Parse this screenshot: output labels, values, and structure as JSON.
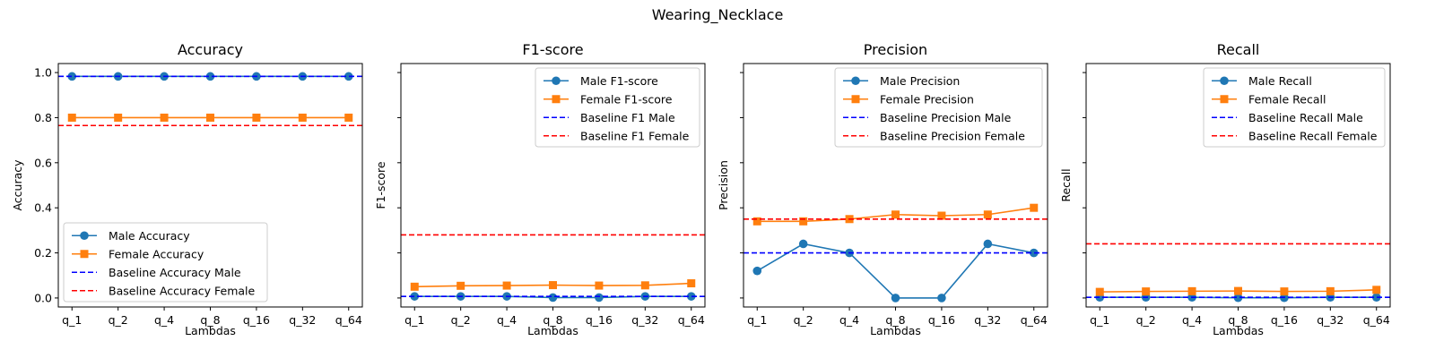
{
  "figure": {
    "suptitle": "Wearing_Necklace"
  },
  "colors": {
    "male": "#1f77b4",
    "female": "#ff7f0e",
    "baseline_male": "#0000ff",
    "baseline_female": "#ff0000"
  },
  "chart_data": [
    {
      "type": "line",
      "title": "Accuracy",
      "xlabel": "Lambdas",
      "ylabel": "Accuracy",
      "categories": [
        "q_1",
        "q_2",
        "q_4",
        "q_8",
        "q_16",
        "q_32",
        "q_64"
      ],
      "ylim": [
        -0.04,
        1.04
      ],
      "yticks": [
        "0.0",
        "0.2",
        "0.4",
        "0.6",
        "0.8",
        "1.0"
      ],
      "ytick_values": [
        0,
        0.2,
        0.4,
        0.6,
        0.8,
        1.0
      ],
      "legend_position": "lower-left",
      "series": [
        {
          "name": "Male Accuracy",
          "marker": "circle",
          "values": [
            0.983,
            0.983,
            0.983,
            0.983,
            0.983,
            0.983,
            0.983
          ]
        },
        {
          "name": "Female Accuracy",
          "marker": "square",
          "values": [
            0.8,
            0.8,
            0.8,
            0.8,
            0.8,
            0.8,
            0.8
          ]
        }
      ],
      "baselines": [
        {
          "name": "Baseline Accuracy Male",
          "value": 0.983,
          "kind": "male"
        },
        {
          "name": "Baseline Accuracy Female",
          "value": 0.765,
          "kind": "female"
        }
      ]
    },
    {
      "type": "line",
      "title": "F1-score",
      "xlabel": "Lambdas",
      "ylabel": "F1-score",
      "categories": [
        "q_1",
        "q_2",
        "q_4",
        "q_8",
        "q_16",
        "q_32",
        "q_64"
      ],
      "ylim": [
        -0.04,
        1.04
      ],
      "yticks": [
        "",
        "",
        "",
        "",
        "",
        ""
      ],
      "ytick_values": [
        0,
        0.2,
        0.4,
        0.6,
        0.8,
        1.0
      ],
      "legend_position": "upper-right",
      "series": [
        {
          "name": "Male F1-score",
          "marker": "circle",
          "values": [
            0.007,
            0.007,
            0.007,
            0.002,
            0.002,
            0.007,
            0.007
          ]
        },
        {
          "name": "Female F1-score",
          "marker": "square",
          "values": [
            0.05,
            0.054,
            0.055,
            0.057,
            0.055,
            0.056,
            0.065
          ]
        }
      ],
      "baselines": [
        {
          "name": "Baseline F1 Male",
          "value": 0.007,
          "kind": "male"
        },
        {
          "name": "Baseline F1 Female",
          "value": 0.28,
          "kind": "female"
        }
      ]
    },
    {
      "type": "line",
      "title": "Precision",
      "xlabel": "Lambdas",
      "ylabel": "Precision",
      "categories": [
        "q_1",
        "q_2",
        "q_4",
        "q_8",
        "q_16",
        "q_32",
        "q_64"
      ],
      "ylim": [
        -0.04,
        1.04
      ],
      "yticks": [
        "",
        "",
        "",
        "",
        "",
        ""
      ],
      "ytick_values": [
        0,
        0.2,
        0.4,
        0.6,
        0.8,
        1.0
      ],
      "legend_position": "upper-right",
      "series": [
        {
          "name": "Male Precision",
          "marker": "circle",
          "values": [
            0.12,
            0.24,
            0.2,
            0.0,
            0.0,
            0.24,
            0.2
          ]
        },
        {
          "name": "Female Precision",
          "marker": "square",
          "values": [
            0.34,
            0.34,
            0.35,
            0.37,
            0.365,
            0.37,
            0.4
          ]
        }
      ],
      "baselines": [
        {
          "name": "Baseline Precision Male",
          "value": 0.2,
          "kind": "male"
        },
        {
          "name": "Baseline Precision Female",
          "value": 0.35,
          "kind": "female"
        }
      ]
    },
    {
      "type": "line",
      "title": "Recall",
      "xlabel": "Lambdas",
      "ylabel": "Recall",
      "categories": [
        "q_1",
        "q_2",
        "q_4",
        "q_8",
        "q_16",
        "q_32",
        "q_64"
      ],
      "ylim": [
        -0.04,
        1.04
      ],
      "yticks": [
        "",
        "",
        "",
        "",
        "",
        ""
      ],
      "ytick_values": [
        0,
        0.2,
        0.4,
        0.6,
        0.8,
        1.0
      ],
      "legend_position": "upper-right",
      "series": [
        {
          "name": "Male Recall",
          "marker": "circle",
          "values": [
            0.003,
            0.003,
            0.003,
            0.001,
            0.001,
            0.003,
            0.003
          ]
        },
        {
          "name": "Female Recall",
          "marker": "square",
          "values": [
            0.027,
            0.029,
            0.03,
            0.031,
            0.029,
            0.03,
            0.036
          ]
        }
      ],
      "baselines": [
        {
          "name": "Baseline Recall Male",
          "value": 0.003,
          "kind": "male"
        },
        {
          "name": "Baseline Recall Female",
          "value": 0.24,
          "kind": "female"
        }
      ]
    }
  ]
}
